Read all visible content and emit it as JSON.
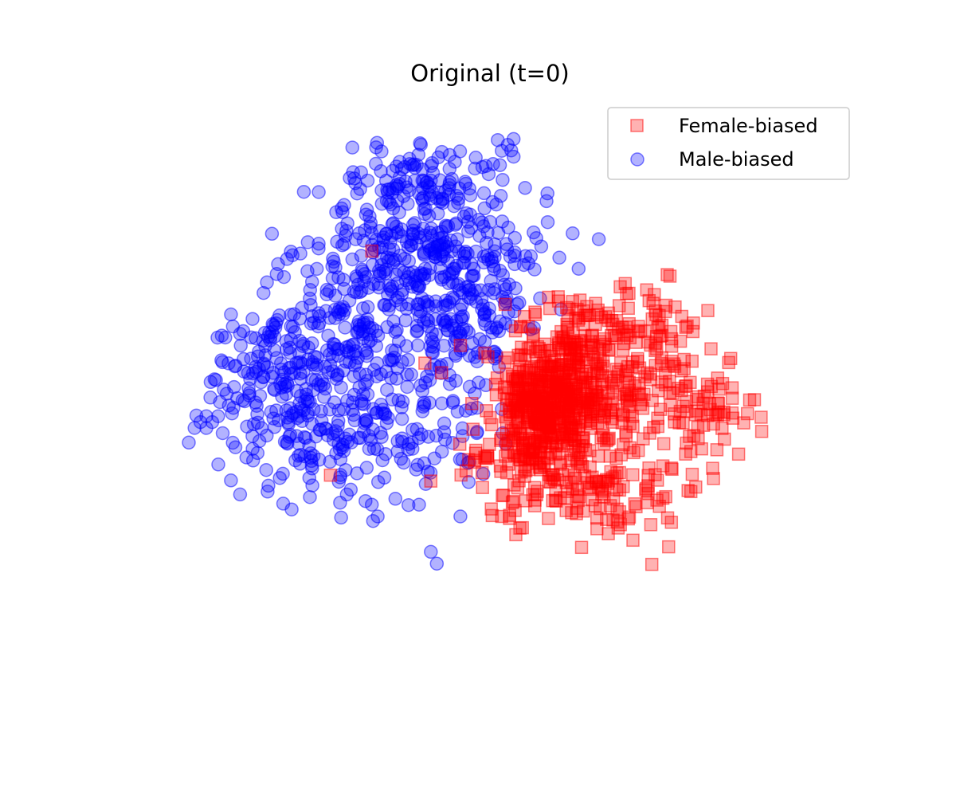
{
  "chart_data": {
    "type": "scatter",
    "title": "Original (t=0)",
    "xlabel": "",
    "ylabel": "",
    "axes_visible": false,
    "grid": false,
    "legend_position": "top-right",
    "xlim": [
      -60,
      60
    ],
    "ylim": [
      -50,
      50
    ],
    "series": [
      {
        "name": "Female-biased",
        "marker": "square",
        "color": "#ff0000",
        "opacity": 0.3,
        "clusters": [
          {
            "cx": 12,
            "cy": 2,
            "sx": 5,
            "sy": 5,
            "n": 240
          },
          {
            "cx": 10,
            "cy": -8,
            "sx": 6,
            "sy": 6,
            "n": 220
          },
          {
            "cx": 8,
            "cy": -2,
            "sx": 3,
            "sy": 5,
            "n": 140
          },
          {
            "cx": 24,
            "cy": 0,
            "sx": 5,
            "sy": 4,
            "n": 90
          },
          {
            "cx": 26,
            "cy": 12,
            "sx": 6,
            "sy": 4,
            "n": 70
          },
          {
            "cx": 37,
            "cy": -3,
            "sx": 4,
            "sy": 4,
            "n": 60
          },
          {
            "cx": 20,
            "cy": -15,
            "sx": 8,
            "sy": 5,
            "n": 90
          },
          {
            "cx": 14,
            "cy": 12,
            "sx": 5,
            "sy": 3,
            "n": 60
          }
        ],
        "points": [
          [
            -27,
            -13
          ],
          [
            -20,
            25
          ],
          [
            -11,
            6
          ],
          [
            -10,
            -14
          ],
          [
            30,
            21
          ],
          [
            34,
            -9
          ],
          [
            -5,
            9
          ],
          [
            2,
            -20
          ],
          [
            3,
            -9
          ]
        ]
      },
      {
        "name": "Male-biased",
        "marker": "circle",
        "color": "#0000ff",
        "opacity": 0.3,
        "clusters": [
          {
            "cx": -15,
            "cy": 26,
            "sx": 7,
            "sy": 8,
            "n": 220
          },
          {
            "cx": -4,
            "cy": 24,
            "sx": 7,
            "sy": 7,
            "n": 170
          },
          {
            "cx": -26,
            "cy": 10,
            "sx": 8,
            "sy": 7,
            "n": 200
          },
          {
            "cx": -38,
            "cy": 2,
            "sx": 5,
            "sy": 6,
            "n": 90
          },
          {
            "cx": -30,
            "cy": -6,
            "sx": 7,
            "sy": 6,
            "n": 110
          },
          {
            "cx": -15,
            "cy": -4,
            "sx": 8,
            "sy": 6,
            "n": 100
          },
          {
            "cx": -3,
            "cy": 10,
            "sx": 4,
            "sy": 6,
            "n": 80
          },
          {
            "cx": -8,
            "cy": 38,
            "sx": 6,
            "sy": 3,
            "n": 50
          }
        ],
        "points": [
          [
            -49,
            -4
          ],
          [
            -48,
            -3
          ],
          [
            -50,
            -5
          ],
          [
            -47,
            -4
          ],
          [
            -46,
            -3
          ],
          [
            -48,
            -5
          ],
          [
            3,
            43
          ],
          [
            4,
            44
          ],
          [
            2,
            42
          ],
          [
            4,
            41
          ],
          [
            -20,
            -18
          ],
          [
            -19,
            -20
          ],
          [
            -16,
            -17
          ],
          [
            -10,
            -26
          ],
          [
            -9,
            -28
          ],
          [
            -12,
            -18
          ],
          [
            -5,
            -20
          ],
          [
            14,
            28
          ],
          [
            15,
            22
          ]
        ]
      }
    ]
  }
}
